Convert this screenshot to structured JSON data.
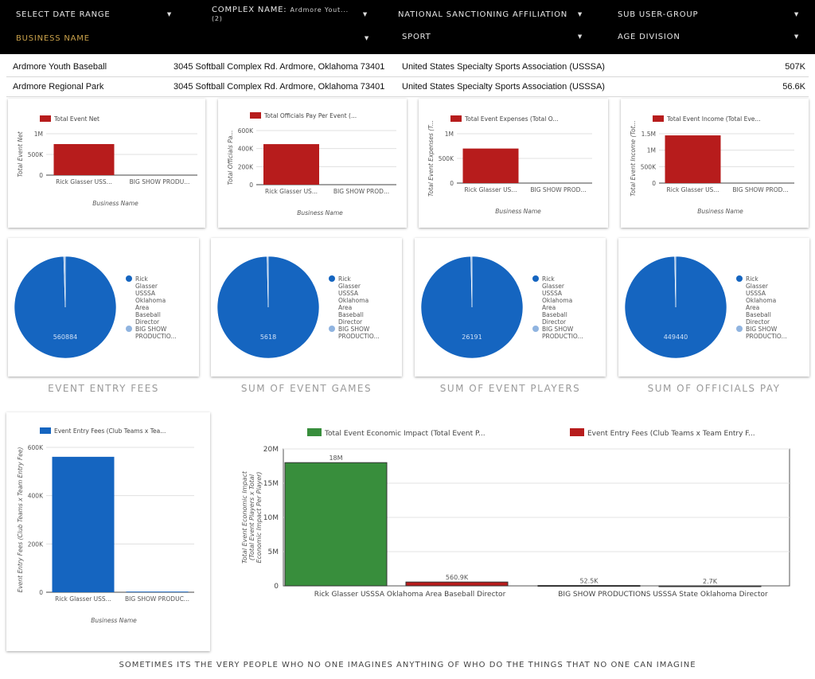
{
  "filters": [
    {
      "label": "select date range",
      "value": ""
    },
    {
      "label": "COMPLEX NAME:",
      "value": "Ardmore Yout... (2)"
    },
    {
      "label": "NATIONAL SANCTIONING AFFILIATION",
      "value": ""
    },
    {
      "label": "SUB USER-GROUP",
      "value": ""
    },
    {
      "label": "BUSINESS NAME",
      "value": ""
    },
    {
      "label": "SPORT",
      "value": ""
    },
    {
      "label": "AGE DIVISION",
      "value": ""
    }
  ],
  "table": {
    "rows": [
      {
        "name": "Ardmore Youth Baseball",
        "address": "3045 Softball Complex Rd. Ardmore, Oklahoma 73401",
        "affiliation": "United States Specialty Sports Association (USSSA)",
        "value": "507K"
      },
      {
        "name": "Ardmore Regional Park",
        "address": "3045 Softball Complex Rd. Ardmore, Oklahoma 73401",
        "affiliation": "United States Specialty Sports Association (USSSA)",
        "value": "56.6K"
      }
    ]
  },
  "chart_data": [
    {
      "type": "bar",
      "title": "",
      "legend": "Total Event Net",
      "ylabel": "Total Event Net",
      "xlabel": "Business Name",
      "categories": [
        "Rick Glasser USS...",
        "BIG SHOW PRODU..."
      ],
      "values": [
        750000,
        0
      ],
      "ylim": [
        0,
        1000000
      ],
      "ticks": [
        "0",
        "500K",
        "1M"
      ],
      "tick_values": [
        0,
        500000,
        1000000
      ],
      "color": "#b71c1c",
      "grid": true
    },
    {
      "type": "bar",
      "title": "",
      "legend": "Total Officials Pay Per Event (...",
      "ylabel": "Total Officials Pa...",
      "xlabel": "Business Name",
      "categories": [
        "Rick Glasser US...",
        "BIG SHOW PROD..."
      ],
      "values": [
        449440,
        0
      ],
      "ylim": [
        0,
        600000
      ],
      "ticks": [
        "0",
        "200K",
        "400K",
        "600K"
      ],
      "tick_values": [
        0,
        200000,
        400000,
        600000
      ],
      "color": "#b71c1c",
      "grid": true
    },
    {
      "type": "bar",
      "title": "",
      "legend": "Total Event Expenses (Total O...",
      "ylabel": "Total Event Expenses (T...",
      "xlabel": "Business Name",
      "categories": [
        "Rick Glasser US...",
        "BIG SHOW PROD..."
      ],
      "values": [
        700000,
        0
      ],
      "ylim": [
        0,
        1000000
      ],
      "ticks": [
        "0",
        "500K",
        "1M"
      ],
      "tick_values": [
        0,
        500000,
        1000000
      ],
      "color": "#b71c1c",
      "grid": true
    },
    {
      "type": "bar",
      "title": "",
      "legend": "Total Event Income (Total Eve...",
      "ylabel": "Total Event Income (Tot...",
      "xlabel": "Business Name",
      "categories": [
        "Rick Glasser US...",
        "BIG SHOW PROD..."
      ],
      "values": [
        1450000,
        0
      ],
      "ylim": [
        0,
        1500000
      ],
      "ticks": [
        "0",
        "500K",
        "1M",
        "1.5M"
      ],
      "tick_values": [
        0,
        500000,
        1000000,
        1500000
      ],
      "color": "#b71c1c",
      "grid": true
    },
    {
      "type": "pie",
      "caption": "Event Entry Fees",
      "center_label": "560884",
      "slices": [
        {
          "name": "Rick Glasser USSSA Oklahoma Area Baseball Director",
          "value": 560884,
          "color": "#1565c0"
        },
        {
          "name": "BIG SHOW PRODUCTIO...",
          "value": 2700,
          "color": "#90b4e0"
        }
      ]
    },
    {
      "type": "pie",
      "caption": "Sum of Event Games",
      "center_label": "5618",
      "slices": [
        {
          "name": "Rick Glasser USSSA Oklahoma Area Baseball Director",
          "value": 5618,
          "color": "#1565c0"
        },
        {
          "name": "BIG SHOW PRODUCTIO...",
          "value": 20,
          "color": "#90b4e0"
        }
      ]
    },
    {
      "type": "pie",
      "caption": "Sum of Event Players",
      "center_label": "26191",
      "slices": [
        {
          "name": "Rick Glasser USSSA Oklahoma Area Baseball Director",
          "value": 26191,
          "color": "#1565c0"
        },
        {
          "name": "BIG SHOW PRODUCTIO...",
          "value": 90,
          "color": "#90b4e0"
        }
      ]
    },
    {
      "type": "pie",
      "caption": "Sum of Officials Pay",
      "center_label": "449440",
      "slices": [
        {
          "name": "Rick Glasser USSSA Oklahoma Area Baseball Director",
          "value": 449440,
          "color": "#1565c0"
        },
        {
          "name": "BIG SHOW PRODUCTIO...",
          "value": 1500,
          "color": "#90b4e0"
        }
      ]
    },
    {
      "type": "bar",
      "title": "",
      "legend": "Event Entry Fees (Club Teams x Tea...",
      "ylabel": "Event Entry Fees (Club Teams x Team Entry Fee)",
      "xlabel": "Business Name",
      "categories": [
        "Rick Glasser USS...",
        "BIG SHOW PRODUC..."
      ],
      "values": [
        560884,
        2700
      ],
      "ylim": [
        0,
        600000
      ],
      "ticks": [
        "0",
        "200K",
        "400K",
        "600K"
      ],
      "tick_values": [
        0,
        200000,
        400000,
        600000
      ],
      "color": "#1565c0",
      "grid": true
    },
    {
      "type": "bar",
      "title": "",
      "ylabel": "Total Event Economic Impact (Total Event Players x Total Economic Impact Per Player)",
      "xlabel": "",
      "categories": [
        "Rick Glasser USSSA Oklahoma Area Baseball Director",
        "BIG SHOW PRODUCTIONS USSSA State Oklahoma Director"
      ],
      "series": [
        {
          "name": "Total Event Economic Impact (Total Event P...",
          "values": [
            18000000,
            52500
          ],
          "labels": [
            "18M",
            "52.5K"
          ],
          "color": "#388e3c"
        },
        {
          "name": "Event Entry Fees (Club Teams x Team Entry F...",
          "values": [
            560900,
            2700
          ],
          "labels": [
            "560.9K",
            "2.7K"
          ],
          "color": "#b71c1c"
        }
      ],
      "ylim": [
        0,
        20000000
      ],
      "ticks": [
        "0",
        "5M",
        "10M",
        "15M",
        "20M"
      ],
      "tick_values": [
        0,
        5000000,
        10000000,
        15000000,
        20000000
      ],
      "grid": true
    }
  ],
  "footer": "Sometimes its the very people who no one imagines anything of who do the things that no one can imagine"
}
